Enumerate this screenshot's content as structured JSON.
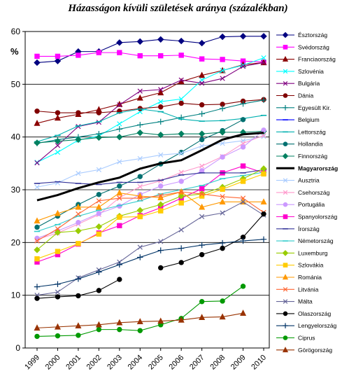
{
  "chart_data": {
    "type": "line",
    "title": "Házasságon kívüli születések aránya (százalékban)",
    "ylabel": "%",
    "xlabel": "",
    "ylim": [
      0,
      60
    ],
    "yticks": [
      0,
      10,
      20,
      30,
      40,
      50,
      60
    ],
    "x": [
      1999,
      2000,
      2001,
      2002,
      2003,
      2004,
      2005,
      2006,
      2007,
      2008,
      2009,
      2010
    ],
    "grid": "horizontal",
    "legend_position": "right",
    "series": [
      {
        "name": "Észtország",
        "color": "#000080",
        "marker": "diamond",
        "values": [
          54.1,
          54.4,
          56.2,
          56.2,
          57.9,
          58.1,
          58.5,
          58.2,
          57.8,
          59.0,
          59.1,
          59.1
        ]
      },
      {
        "name": "Svédország",
        "color": "#ff00ff",
        "marker": "square",
        "values": [
          55.3,
          55.3,
          55.5,
          56.0,
          56.0,
          55.4,
          55.4,
          55.5,
          54.8,
          54.7,
          54.4,
          54.2
        ]
      },
      {
        "name": "Franciaország",
        "color": "#8b0000",
        "marker": "triangle",
        "values": [
          42.6,
          43.6,
          44.3,
          45.2,
          46.2,
          47.4,
          48.4,
          50.5,
          51.7,
          52.6,
          53.7,
          54.1
        ]
      },
      {
        "name": "Szlovénia",
        "color": "#00ffff",
        "marker": "x",
        "values": [
          35.2,
          37.1,
          39.4,
          40.2,
          42.5,
          44.8,
          46.7,
          47.2,
          50.8,
          52.6,
          53.6,
          55.0
        ]
      },
      {
        "name": "Bulgária",
        "color": "#800080",
        "marker": "x",
        "values": [
          35.1,
          38.4,
          42.0,
          42.8,
          46.1,
          48.7,
          49.0,
          50.8,
          50.2,
          51.1,
          53.4,
          54.1
        ]
      },
      {
        "name": "Dánia",
        "color": "#800000",
        "marker": "circle",
        "values": [
          44.9,
          44.6,
          44.6,
          44.6,
          44.9,
          45.4,
          45.7,
          46.4,
          46.1,
          46.2,
          46.8,
          47.1
        ]
      },
      {
        "name": "Egyesült Kir.",
        "color": "#008080",
        "marker": "plus",
        "values": [
          38.8,
          39.5,
          40.0,
          40.6,
          41.5,
          42.3,
          42.9,
          43.7,
          44.4,
          45.4,
          46.3,
          47.0
        ]
      },
      {
        "name": "Belgium",
        "color": "#0000ff",
        "marker": "dash",
        "values": [
          null,
          null,
          null,
          null,
          null,
          null,
          null,
          null,
          null,
          null,
          null,
          null
        ]
      },
      {
        "name": "Lettország",
        "color": "#00b0b0",
        "marker": "dash",
        "values": [
          39.1,
          40.3,
          42.1,
          42.9,
          44.6,
          45.3,
          44.8,
          43.4,
          43.0,
          43.1,
          43.5,
          44.1
        ]
      },
      {
        "name": "Hollandia",
        "color": "#007070",
        "marker": "circle",
        "values": [
          22.9,
          25.0,
          27.2,
          29.1,
          30.7,
          32.5,
          34.9,
          37.1,
          39.5,
          41.2,
          43.3,
          null
        ]
      },
      {
        "name": "Finnország",
        "color": "#008060",
        "marker": "diamond",
        "values": [
          38.9,
          39.2,
          39.5,
          39.9,
          40.0,
          40.8,
          40.4,
          40.6,
          40.6,
          40.9,
          40.9,
          41.1
        ]
      },
      {
        "name": "Magyarország",
        "color": "#000000",
        "marker": "none",
        "values": [
          28.0,
          29.0,
          30.3,
          31.4,
          32.3,
          34.0,
          35.0,
          35.6,
          37.5,
          39.5,
          40.5,
          40.8
        ]
      },
      {
        "name": "Ausztria",
        "color": "#aaccff",
        "marker": "x",
        "values": [
          30.5,
          31.3,
          33.1,
          33.8,
          35.3,
          35.9,
          36.6,
          36.9,
          38.3,
          38.8,
          39.3,
          40.1
        ]
      },
      {
        "name": "Csehország",
        "color": "#ff99cc",
        "marker": "x",
        "values": [
          20.6,
          21.8,
          23.5,
          25.3,
          28.5,
          30.6,
          31.7,
          33.3,
          34.5,
          36.3,
          38.8,
          40.3
        ]
      },
      {
        "name": "Portugália",
        "color": "#cc99ff",
        "marker": "circle",
        "values": [
          20.8,
          22.2,
          23.8,
          25.5,
          26.9,
          29.1,
          30.7,
          31.6,
          33.6,
          36.2,
          38.1,
          41.3
        ]
      },
      {
        "name": "Spanyolország",
        "color": "#ff00cc",
        "marker": "square",
        "values": [
          16.3,
          17.7,
          19.7,
          21.8,
          23.2,
          25.1,
          26.6,
          28.4,
          30.2,
          33.2,
          34.5,
          33.2
        ]
      },
      {
        "name": "Írország",
        "color": "#333399",
        "marker": "dash",
        "values": [
          31.2,
          31.5,
          31.2,
          31.0,
          31.4,
          31.4,
          31.8,
          32.8,
          33.2,
          33.2,
          33.2,
          33.8
        ]
      },
      {
        "name": "Németország",
        "color": "#33cccc",
        "marker": "dash",
        "values": [
          22.1,
          23.4,
          25.0,
          26.1,
          27.0,
          27.9,
          29.2,
          30.0,
          30.8,
          32.1,
          32.7,
          33.3
        ]
      },
      {
        "name": "Luxemburg",
        "color": "#99cc00",
        "marker": "diamond",
        "values": [
          18.6,
          21.9,
          22.2,
          23.0,
          25.0,
          26.1,
          27.2,
          28.8,
          29.2,
          30.5,
          32.1,
          34.0
        ]
      },
      {
        "name": "Szlovákia",
        "color": "#ffcc00",
        "marker": "square",
        "values": [
          16.9,
          18.3,
          19.8,
          21.6,
          24.8,
          24.9,
          26.0,
          27.5,
          28.8,
          30.1,
          31.6,
          33.0
        ]
      },
      {
        "name": "Románia",
        "color": "#ff9900",
        "marker": "triangle",
        "values": [
          24.1,
          25.5,
          26.7,
          26.7,
          29.4,
          28.8,
          28.5,
          29.6,
          26.7,
          27.7,
          27.7,
          27.7
        ]
      },
      {
        "name": "Litvánia",
        "color": "#ff6633",
        "marker": "x",
        "values": [
          20.3,
          22.6,
          25.4,
          27.9,
          28.4,
          28.4,
          28.9,
          29.6,
          29.2,
          28.7,
          28.4,
          25.7
        ]
      },
      {
        "name": "Málta",
        "color": "#666699",
        "marker": "x",
        "values": [
          10.0,
          10.6,
          13.3,
          14.8,
          16.3,
          19.1,
          20.2,
          22.4,
          24.9,
          25.6,
          27.7,
          25.2
        ]
      },
      {
        "name": "Olaszország",
        "color": "#000000",
        "marker": "circle",
        "values": [
          9.4,
          9.7,
          9.9,
          10.9,
          13.0,
          null,
          15.2,
          16.2,
          17.7,
          18.9,
          21.0,
          25.4
        ]
      },
      {
        "name": "Lengyelország",
        "color": "#003366",
        "marker": "plus",
        "values": [
          11.6,
          12.1,
          13.1,
          14.4,
          15.8,
          17.2,
          18.5,
          18.9,
          19.5,
          19.9,
          20.3,
          20.6
        ]
      },
      {
        "name": "Ciprus",
        "color": "#009900",
        "marker": "circle",
        "values": [
          2.2,
          2.3,
          2.4,
          3.5,
          3.5,
          3.3,
          4.4,
          5.6,
          8.8,
          8.9,
          11.7,
          null
        ]
      },
      {
        "name": "Görögország",
        "color": "#993300",
        "marker": "triangle",
        "values": [
          3.8,
          4.0,
          4.2,
          4.4,
          4.8,
          5.0,
          5.1,
          5.3,
          5.8,
          5.9,
          6.6,
          null
        ]
      }
    ]
  }
}
